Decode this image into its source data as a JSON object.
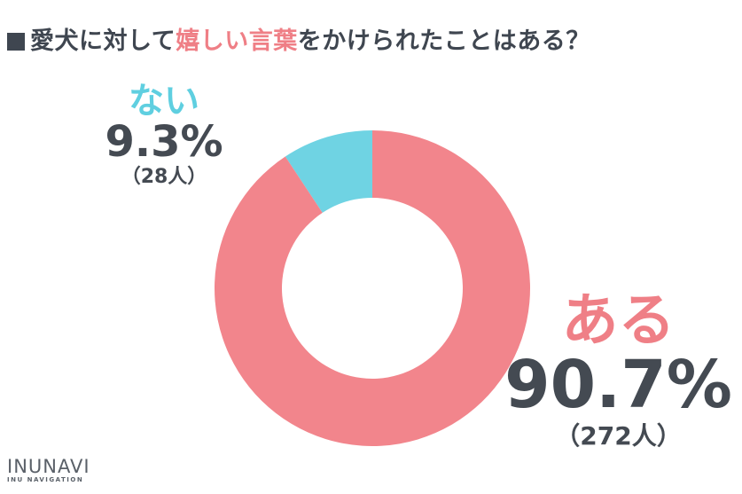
{
  "title": {
    "prefix": "愛犬に対して",
    "highlight": "嬉しい言葉",
    "suffix": "をかけられたことはある？"
  },
  "colors": {
    "ある": "#f2858c",
    "ない": "#6fd3e3",
    "text": "#444a52",
    "accent": "#ef7f86"
  },
  "chart_data": {
    "type": "pie",
    "title": "愛犬に対して嬉しい言葉をかけられたことはある？",
    "series": [
      {
        "name": "ない",
        "value": 9.3,
        "value_label": "9.3%",
        "count_label": "（28人）"
      },
      {
        "name": "ある",
        "value": 90.7,
        "value_label": "90.7%",
        "count_label": "（272人）"
      }
    ]
  },
  "logo": {
    "main": "INUNAVI",
    "sub": "INU NAVIGATION"
  }
}
